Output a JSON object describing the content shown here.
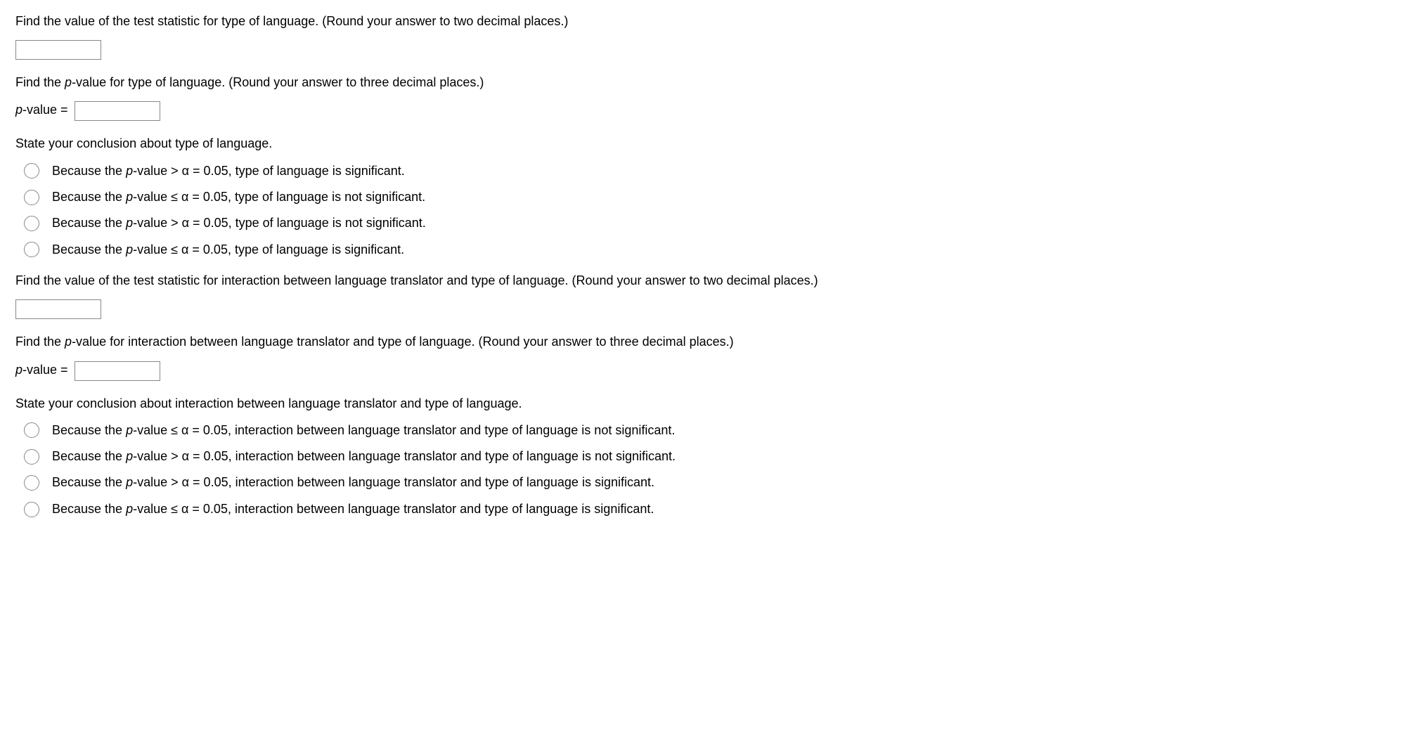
{
  "q1": {
    "prompt": "Find the value of the test statistic for type of language. (Round your answer to two decimal places.)"
  },
  "q2": {
    "prompt_before": "Find the ",
    "prompt_italic": "p",
    "prompt_after": "-value for type of language. (Round your answer to three decimal places.)",
    "label_italic": "p",
    "label_after": "-value ="
  },
  "q3": {
    "prompt": "State your conclusion about type of language.",
    "options": [
      {
        "before": "Because the ",
        "italic": "p",
        "after": "-value > α = 0.05, type of language is significant."
      },
      {
        "before": "Because the ",
        "italic": "p",
        "after": "-value ≤ α = 0.05, type of language is not significant."
      },
      {
        "before": "Because the ",
        "italic": "p",
        "after": "-value > α = 0.05, type of language is not significant."
      },
      {
        "before": "Because the ",
        "italic": "p",
        "after": "-value ≤ α = 0.05, type of language is significant."
      }
    ]
  },
  "q4": {
    "prompt": "Find the value of the test statistic for interaction between language translator and type of language. (Round your answer to two decimal places.)"
  },
  "q5": {
    "prompt_before": "Find the ",
    "prompt_italic": "p",
    "prompt_after": "-value for interaction between language translator and type of language. (Round your answer to three decimal places.)",
    "label_italic": "p",
    "label_after": "-value ="
  },
  "q6": {
    "prompt": "State your conclusion about interaction between language translator and type of language.",
    "options": [
      {
        "before": "Because the ",
        "italic": "p",
        "after": "-value ≤ α = 0.05, interaction between language translator and type of language is not significant."
      },
      {
        "before": "Because the ",
        "italic": "p",
        "after": "-value > α = 0.05, interaction between language translator and type of language is not significant."
      },
      {
        "before": "Because the ",
        "italic": "p",
        "after": "-value > α = 0.05, interaction between language translator and type of language is significant."
      },
      {
        "before": "Because the ",
        "italic": "p",
        "after": "-value ≤ α = 0.05, interaction between language translator and type of language is significant."
      }
    ]
  }
}
